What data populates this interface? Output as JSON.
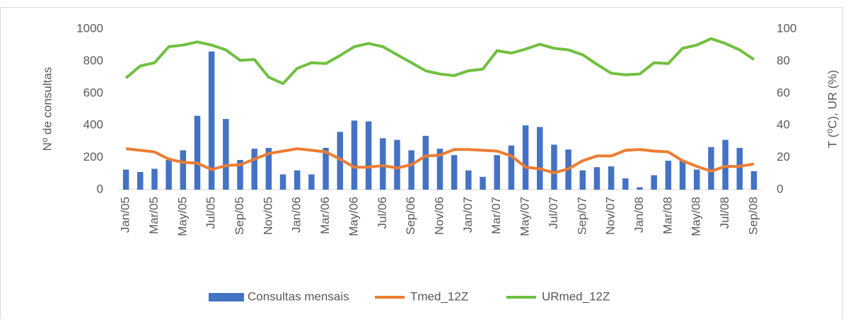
{
  "chart_data": {
    "type": "bar-line",
    "y_label": "Nº de consultas",
    "y2_label": "T (⁰C), UR (%)",
    "categories": [
      "Jan/05",
      null,
      "Mar/05",
      null,
      "May/05",
      null,
      "Jul/05",
      null,
      "Sep/05",
      null,
      "Nov/05",
      null,
      "Jan/06",
      null,
      "Mar/06",
      null,
      "May/06",
      null,
      "Jul/06",
      null,
      "Sep/06",
      null,
      "Nov/06",
      null,
      "Jan/07",
      null,
      "Mar/07",
      null,
      "May/07",
      null,
      "Jul/07",
      null,
      "Sep/07",
      null,
      "Nov/07",
      null,
      "Jan/08",
      null,
      "Mar/08",
      null,
      "May/08",
      null,
      "Jul/08",
      null,
      "Sep/08"
    ],
    "series": [
      {
        "name": "Consultas mensais",
        "color": "#4472c4",
        "kind": "bar",
        "values": [
          125,
          110,
          130,
          185,
          245,
          460,
          860,
          440,
          185,
          255,
          260,
          95,
          120,
          95,
          260,
          360,
          430,
          425,
          320,
          310,
          245,
          335,
          255,
          215,
          120,
          80,
          215,
          275,
          400,
          390,
          280,
          250,
          120,
          140,
          145,
          70,
          15,
          90,
          180,
          180,
          125,
          265,
          310,
          260,
          115
        ]
      },
      {
        "name": "Tmed_12Z",
        "color": "#ed7d31",
        "kind": "line",
        "axis": "y2",
        "values": [
          25.5,
          24.5,
          23.5,
          19,
          17,
          16.5,
          12.5,
          15,
          15.5,
          19,
          22.5,
          24,
          25.5,
          24.5,
          23.5,
          19,
          14,
          14,
          15,
          13.5,
          15.5,
          21,
          21.5,
          25,
          25,
          24.5,
          24,
          21,
          14,
          13,
          10.5,
          13,
          18,
          21,
          21,
          24.5,
          25,
          24,
          23.5,
          18,
          14.5,
          11.5,
          14.5,
          14.5,
          16
        ]
      },
      {
        "name": "URmed_12Z",
        "color": "#70c040",
        "kind": "line",
        "axis": "y2",
        "values": [
          69.5,
          77,
          79,
          89,
          90,
          92,
          90,
          87,
          80.5,
          81,
          70,
          66,
          75.5,
          79,
          78.5,
          83.5,
          89,
          91,
          89,
          84,
          79,
          74,
          72,
          71,
          74,
          75,
          86.5,
          85,
          87.5,
          90.5,
          88,
          87,
          84,
          78,
          72.5,
          71.5,
          72,
          79,
          78.5,
          88,
          90,
          94,
          91,
          87,
          81
        ]
      }
    ],
    "ylim": [
      0,
      1000
    ],
    "yticks": [
      0,
      200,
      400,
      600,
      800,
      1000
    ],
    "y2lim": [
      0,
      100
    ],
    "y2ticks": [
      0,
      20,
      40,
      60,
      80,
      100
    ],
    "legend": "bottom"
  }
}
